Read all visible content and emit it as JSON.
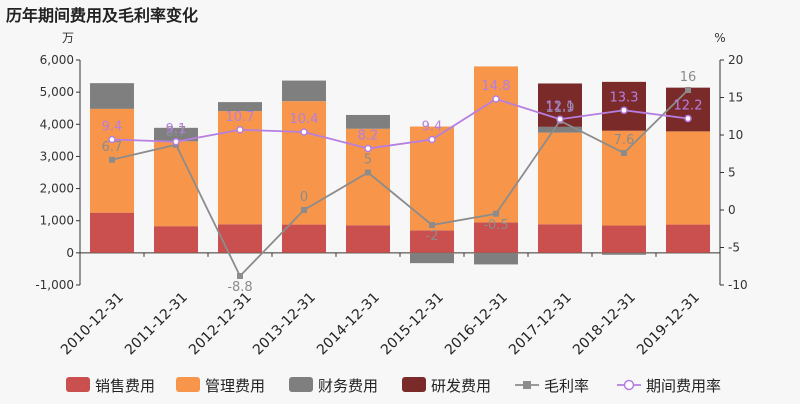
{
  "chart_data": {
    "type": "bar",
    "title": "历年期间费用及毛利率变化",
    "y_left_unit": "万",
    "y_right_unit": "%",
    "y_left_lim": [
      -1000,
      6000
    ],
    "y_left_ticks": [
      "-1,000",
      "0",
      "1,000",
      "2,000",
      "3,000",
      "4,000",
      "5,000",
      "6,000"
    ],
    "y_right_lim": [
      -10,
      20
    ],
    "y_right_ticks": [
      "-10",
      "-5",
      "0",
      "5",
      "10",
      "15",
      "20"
    ],
    "grid": false,
    "legend_position": "bottom",
    "categories": [
      "2010-12-31",
      "2011-12-31",
      "2012-12-31",
      "2013-12-31",
      "2014-12-31",
      "2015-12-31",
      "2016-12-31",
      "2017-12-31",
      "2018-12-31",
      "2019-12-31"
    ],
    "bar_series": [
      {
        "name": "销售费用",
        "color": "#c9504e",
        "values": [
          1250,
          830,
          890,
          880,
          860,
          700,
          950,
          890,
          850,
          880
        ]
      },
      {
        "name": "管理费用",
        "color": "#f7964a",
        "values": [
          3230,
          2640,
          3520,
          3840,
          3000,
          3230,
          4850,
          2850,
          2950,
          2900
        ]
      },
      {
        "name": "财务费用",
        "color": "#7f7f7f",
        "values": [
          800,
          420,
          280,
          640,
          430,
          -320,
          -360,
          180,
          -60,
          0
        ]
      },
      {
        "name": "研发费用",
        "color": "#7b2a2a",
        "values": [
          0,
          0,
          0,
          0,
          0,
          0,
          0,
          1350,
          1520,
          1360
        ]
      }
    ],
    "line_series": [
      {
        "name": "毛利率",
        "color": "#8c8c8c",
        "marker": "square",
        "values": [
          6.7,
          8.7,
          -8.8,
          0,
          5,
          -2,
          -0.5,
          11.9,
          7.6,
          16
        ],
        "labels": [
          "6.7",
          "8.7",
          "-8.8",
          "0",
          "5",
          "-2",
          "-0.5",
          "11.9",
          "7.6",
          "16"
        ]
      },
      {
        "name": "期间费用率",
        "color": "#b57ee0",
        "marker": "circle",
        "values": [
          9.4,
          9.1,
          10.7,
          10.4,
          8.2,
          9.4,
          14.8,
          12.1,
          13.3,
          12.2
        ],
        "labels": [
          "9.4",
          "9.1",
          "10.7",
          "10.4",
          "8.2",
          "9.4",
          "14.8",
          "12.1",
          "13.3",
          "12.2"
        ]
      }
    ]
  }
}
